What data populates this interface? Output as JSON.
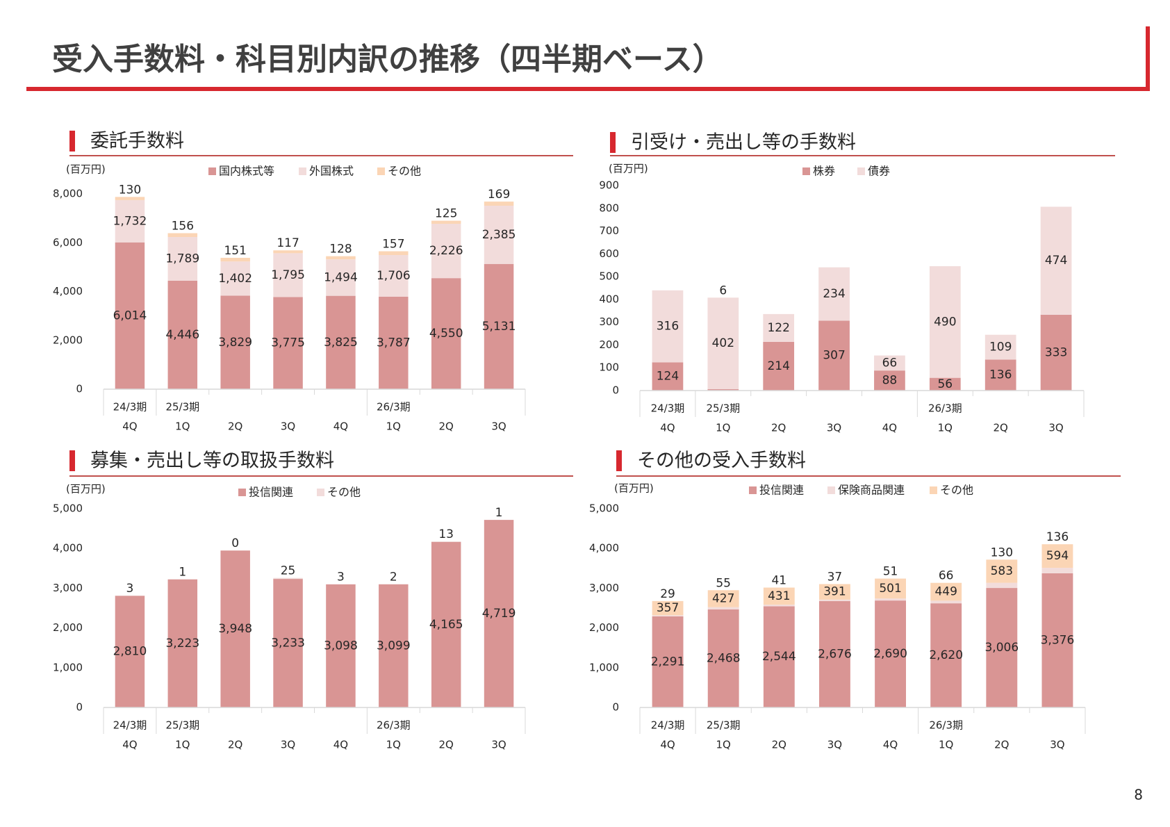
{
  "title": "受入手数料・科目別内訳の推移（四半期ベース）",
  "page_number": 8,
  "chart_data": [
    {
      "type": "stacked_bar",
      "title": "委託手数料",
      "unit": "(百万円)",
      "categories": [
        "4Q",
        "1Q",
        "2Q",
        "3Q",
        "4Q",
        "1Q",
        "2Q",
        "3Q"
      ],
      "period_labels": [
        "24/3期",
        "25/3期",
        null,
        null,
        null,
        "26/3期",
        null,
        null
      ],
      "ylim": [
        0,
        8000
      ],
      "yticks": [
        0,
        {
          "value": 2000,
          "label": "2,000"
        },
        {
          "value": 4000,
          "label": "4,000"
        },
        {
          "value": 6000,
          "label": "6,000"
        },
        {
          "value": 8000,
          "label": "8,000"
        }
      ],
      "grid": false,
      "series": [
        {
          "name": "国内株式等",
          "color": "#d99594",
          "values": [
            6014,
            4446,
            3829,
            3775,
            3825,
            3787,
            4550,
            5131
          ],
          "value_labels": [
            "6,014",
            "4,446",
            "3,829",
            "3,775",
            "3,825",
            "3,787",
            "4,550",
            "5,131"
          ]
        },
        {
          "name": "外国株式",
          "color": "#f2dcdb",
          "values": [
            1732,
            1789,
            1402,
            1795,
            1494,
            1706,
            2226,
            2385
          ],
          "value_labels": [
            "1,732",
            "1,789",
            "1,402",
            "1,795",
            "1,494",
            "1,706",
            "2,226",
            "2,385"
          ]
        },
        {
          "name": "その他",
          "color": "#fbd5b5",
          "values": [
            130,
            156,
            151,
            117,
            128,
            157,
            125,
            169
          ]
        }
      ]
    },
    {
      "type": "stacked_bar",
      "title": "引受け・売出し等の手数料",
      "unit": "(百万円)",
      "categories": [
        "4Q",
        "1Q",
        "2Q",
        "3Q",
        "4Q",
        "1Q",
        "2Q",
        "3Q"
      ],
      "period_labels": [
        "24/3期",
        "25/3期",
        null,
        null,
        null,
        "26/3期",
        null,
        null
      ],
      "ylim": [
        0,
        900
      ],
      "yticks": [
        0,
        100,
        200,
        300,
        400,
        500,
        600,
        700,
        800,
        900
      ],
      "grid": false,
      "series": [
        {
          "name": "株券",
          "color": "#d99594",
          "values": [
            124,
            6,
            214,
            307,
            88,
            56,
            136,
            333
          ]
        },
        {
          "name": "債券",
          "color": "#f2dcdb",
          "values": [
            316,
            402,
            122,
            234,
            66,
            490,
            109,
            474
          ]
        }
      ]
    },
    {
      "type": "stacked_bar",
      "title": "募集・売出し等の取扱手数料",
      "unit": "(百万円)",
      "categories": [
        "4Q",
        "1Q",
        "2Q",
        "3Q",
        "4Q",
        "1Q",
        "2Q",
        "3Q"
      ],
      "period_labels": [
        "24/3期",
        "25/3期",
        null,
        null,
        null,
        "26/3期",
        null,
        null
      ],
      "ylim": [
        0,
        5000
      ],
      "yticks": [
        0,
        {
          "value": 1000,
          "label": "1,000"
        },
        {
          "value": 2000,
          "label": "2,000"
        },
        {
          "value": 3000,
          "label": "3,000"
        },
        {
          "value": 4000,
          "label": "4,000"
        },
        {
          "value": 5000,
          "label": "5,000"
        }
      ],
      "grid": false,
      "series": [
        {
          "name": "投信関連",
          "color": "#d99594",
          "values": [
            2810,
            3223,
            3948,
            3233,
            3098,
            3099,
            4165,
            4719
          ],
          "value_labels": [
            "2,810",
            "3,223",
            "3,948",
            "3,233",
            "3,098",
            "3,099",
            "4,165",
            "4,719"
          ]
        },
        {
          "name": "その他",
          "color": "#f2dcdb",
          "values": [
            3,
            1,
            0,
            25,
            3,
            2,
            13,
            1
          ]
        }
      ]
    },
    {
      "type": "stacked_bar",
      "title": "その他の受入手数料",
      "unit": "(百万円)",
      "categories": [
        "4Q",
        "1Q",
        "2Q",
        "3Q",
        "4Q",
        "1Q",
        "2Q",
        "3Q"
      ],
      "period_labels": [
        "24/3期",
        "25/3期",
        null,
        null,
        null,
        "26/3期",
        null,
        null
      ],
      "ylim": [
        0,
        5000
      ],
      "yticks": [
        0,
        {
          "value": 1000,
          "label": "1,000"
        },
        {
          "value": 2000,
          "label": "2,000"
        },
        {
          "value": 3000,
          "label": "3,000"
        },
        {
          "value": 4000,
          "label": "4,000"
        },
        {
          "value": 5000,
          "label": "5,000"
        }
      ],
      "grid": false,
      "series": [
        {
          "name": "投信関連",
          "color": "#d99594",
          "values": [
            2291,
            2468,
            2544,
            2676,
            2690,
            2620,
            3006,
            3376
          ],
          "value_labels": [
            "2,291",
            "2,468",
            "2,544",
            "2,676",
            "2,690",
            "2,620",
            "3,006",
            "3,376"
          ]
        },
        {
          "name": "保険商品関連",
          "color": "#f2dcdb",
          "values": [
            29,
            55,
            41,
            37,
            51,
            66,
            130,
            136
          ]
        },
        {
          "name": "その他",
          "color": "#fbd5b5",
          "values": [
            357,
            427,
            431,
            391,
            501,
            449,
            583,
            594
          ]
        }
      ]
    }
  ]
}
